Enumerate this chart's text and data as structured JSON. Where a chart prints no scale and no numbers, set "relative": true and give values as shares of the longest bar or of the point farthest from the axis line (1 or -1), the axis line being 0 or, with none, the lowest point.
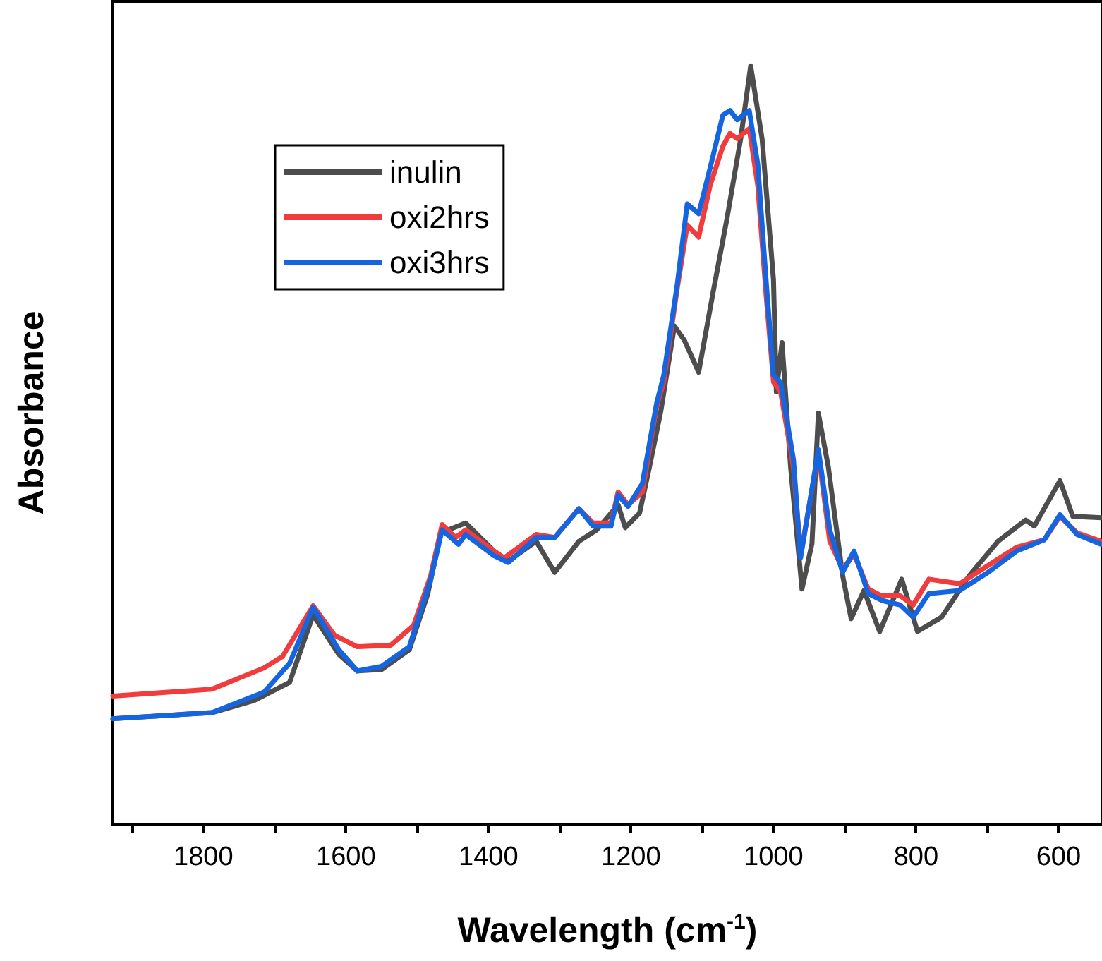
{
  "chart_data": {
    "type": "line",
    "xlabel": "Wavelength (cm$^{-1}$)",
    "ylabel": "Absorbance",
    "relative": true,
    "legend": "top left",
    "grid": false,
    "marker": "none",
    "line_style": "solid",
    "tick_labels": "x",
    "xlim": [
      1927,
      539
    ],
    "xticks": [
      {
        "value": 1900,
        "label": null
      },
      1800,
      {
        "value": 1700,
        "label": null
      },
      1600,
      {
        "value": 1500,
        "label": null
      },
      1400,
      {
        "value": 1300,
        "label": null
      },
      1200,
      {
        "value": 1100,
        "label": null
      },
      1000,
      {
        "value": 900,
        "label": null
      },
      800,
      {
        "value": 700,
        "label": null
      },
      600
    ],
    "series": [
      {
        "name": "inulin",
        "color": "#4d4d4d",
        "x": [
          1927,
          1788,
          1729,
          1679,
          1646,
          1610,
          1584,
          1550,
          1511,
          1485,
          1467,
          1432,
          1392,
          1372,
          1333,
          1307,
          1273,
          1248,
          1218,
          1208,
          1188,
          1174,
          1158,
          1139,
          1125,
          1105,
          1085,
          1065,
          1046,
          1032,
          1016,
          1000,
          996,
          988,
          976,
          960,
          946,
          937,
          923,
          903,
          891,
          873,
          851,
          820,
          798,
          764,
          725,
          685,
          646,
          634,
          598,
          580,
          540
        ],
        "values": [
          0.139,
          0.147,
          0.163,
          0.187,
          0.276,
          0.224,
          0.202,
          0.204,
          0.23,
          0.304,
          0.384,
          0.397,
          0.36,
          0.347,
          0.373,
          0.332,
          0.373,
          0.388,
          0.421,
          0.391,
          0.41,
          0.471,
          0.545,
          0.657,
          0.638,
          0.596,
          0.7,
          0.8,
          0.904,
          1.0,
          0.904,
          0.718,
          0.57,
          0.635,
          0.471,
          0.31,
          0.37,
          0.542,
          0.471,
          0.328,
          0.271,
          0.308,
          0.254,
          0.323,
          0.254,
          0.273,
          0.328,
          0.373,
          0.401,
          0.393,
          0.453,
          0.406,
          0.404
        ]
      },
      {
        "name": "oxi2hrs",
        "color": "#f03c3c",
        "x": [
          1927,
          1788,
          1715,
          1689,
          1646,
          1616,
          1584,
          1537,
          1505,
          1481,
          1465,
          1446,
          1432,
          1392,
          1378,
          1333,
          1307,
          1273,
          1253,
          1228,
          1218,
          1204,
          1184,
          1164,
          1154,
          1135,
          1121,
          1105,
          1089,
          1071,
          1061,
          1051,
          1034,
          1022,
          1010,
          1000,
          990,
          972,
          962,
          937,
          921,
          903,
          887,
          867,
          848,
          822,
          804,
          782,
          739,
          699,
          659,
          620,
          598,
          574,
          540
        ],
        "values": [
          0.169,
          0.178,
          0.206,
          0.221,
          0.288,
          0.249,
          0.234,
          0.236,
          0.262,
          0.328,
          0.395,
          0.378,
          0.388,
          0.36,
          0.351,
          0.382,
          0.378,
          0.416,
          0.397,
          0.397,
          0.438,
          0.421,
          0.438,
          0.551,
          0.583,
          0.707,
          0.79,
          0.774,
          0.842,
          0.894,
          0.911,
          0.904,
          0.917,
          0.842,
          0.694,
          0.583,
          0.57,
          0.471,
          0.354,
          0.49,
          0.373,
          0.336,
          0.356,
          0.31,
          0.301,
          0.301,
          0.289,
          0.323,
          0.317,
          0.341,
          0.365,
          0.375,
          0.406,
          0.384,
          0.373
        ]
      },
      {
        "name": "oxi3hrs",
        "color": "#1565e0",
        "x": [
          1927,
          1788,
          1715,
          1679,
          1646,
          1610,
          1584,
          1550,
          1511,
          1481,
          1465,
          1442,
          1432,
          1392,
          1372,
          1333,
          1307,
          1273,
          1253,
          1228,
          1218,
          1204,
          1184,
          1164,
          1154,
          1135,
          1121,
          1105,
          1089,
          1071,
          1061,
          1051,
          1034,
          1022,
          1010,
          1000,
          990,
          972,
          962,
          937,
          921,
          903,
          887,
          867,
          848,
          822,
          804,
          782,
          739,
          699,
          659,
          620,
          598,
          574,
          540
        ],
        "values": [
          0.139,
          0.147,
          0.174,
          0.212,
          0.286,
          0.23,
          0.202,
          0.208,
          0.234,
          0.323,
          0.388,
          0.369,
          0.382,
          0.354,
          0.345,
          0.378,
          0.378,
          0.416,
          0.393,
          0.393,
          0.434,
          0.419,
          0.449,
          0.555,
          0.592,
          0.712,
          0.818,
          0.805,
          0.865,
          0.935,
          0.941,
          0.929,
          0.941,
          0.87,
          0.712,
          0.592,
          0.583,
          0.481,
          0.351,
          0.494,
          0.388,
          0.332,
          0.36,
          0.304,
          0.295,
          0.289,
          0.273,
          0.304,
          0.308,
          0.332,
          0.36,
          0.375,
          0.408,
          0.382,
          0.369
        ]
      }
    ]
  }
}
